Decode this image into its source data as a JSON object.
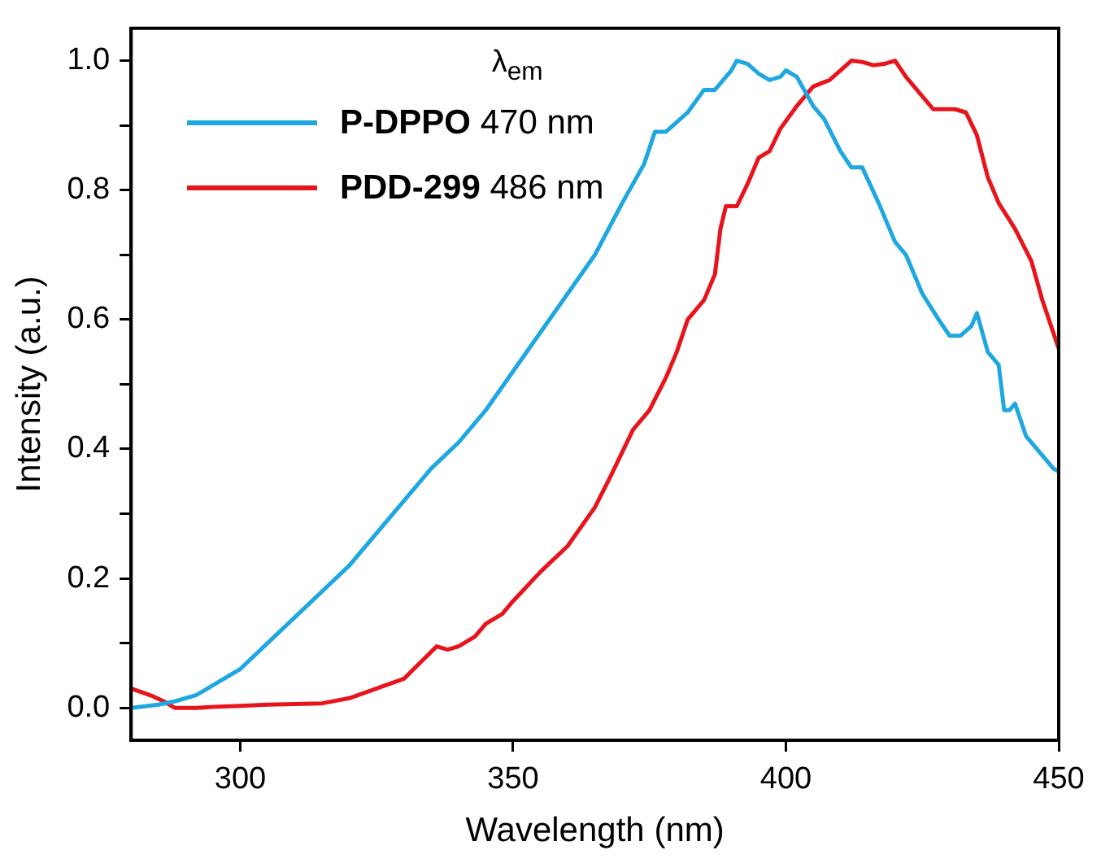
{
  "chart_data": {
    "type": "line",
    "xlabel": "Wavelength (nm)",
    "ylabel": "Intensity (a.u.)",
    "legend_title": "λ$_{em}$",
    "legend": "top left",
    "grid": false,
    "marker": "none",
    "line_style": "solid",
    "xlim": [
      280,
      450
    ],
    "xticks": [
      300,
      350,
      400,
      450
    ],
    "ylim": [
      -0.05,
      1.05
    ],
    "yticks": [
      {
        "value": 0,
        "label": "0.0"
      },
      {
        "value": 0.1,
        "label": null
      },
      {
        "value": 0.2,
        "label": "0.2"
      },
      {
        "value": 0.3,
        "label": null
      },
      {
        "value": 0.4,
        "label": "0.4"
      },
      {
        "value": 0.5,
        "label": null
      },
      {
        "value": 0.6,
        "label": "0.6"
      },
      {
        "value": 0.7,
        "label": null
      },
      {
        "value": 0.8,
        "label": "0.8"
      },
      {
        "value": 0.9,
        "label": null
      },
      {
        "value": 1,
        "label": "1.0"
      }
    ],
    "series": [
      {
        "name": "P-DPPO 470 nm",
        "color": "#1ea7e1",
        "x": [
          280,
          285,
          288,
          292,
          295,
          300,
          305,
          310,
          315,
          320,
          325,
          330,
          335,
          340,
          345,
          350,
          355,
          360,
          365,
          370,
          374,
          376,
          378,
          382,
          385,
          387,
          390,
          391,
          393,
          395,
          397,
          399,
          400,
          402,
          405,
          407,
          410,
          412,
          414,
          417,
          420,
          422,
          425,
          428,
          430,
          432,
          434,
          435,
          437,
          439,
          440,
          441,
          442,
          444,
          447,
          449,
          450
        ],
        "values": [
          0.0,
          0.005,
          0.01,
          0.02,
          0.035,
          0.06,
          0.1,
          0.14,
          0.18,
          0.22,
          0.27,
          0.32,
          0.37,
          0.41,
          0.46,
          0.52,
          0.58,
          0.64,
          0.7,
          0.78,
          0.84,
          0.89,
          0.89,
          0.92,
          0.955,
          0.955,
          0.985,
          1.0,
          0.995,
          0.98,
          0.97,
          0.975,
          0.985,
          0.975,
          0.93,
          0.91,
          0.86,
          0.835,
          0.835,
          0.78,
          0.72,
          0.7,
          0.64,
          0.6,
          0.575,
          0.575,
          0.59,
          0.61,
          0.55,
          0.53,
          0.46,
          0.46,
          0.47,
          0.42,
          0.39,
          0.37,
          0.365
        ]
      },
      {
        "name": "PDD-299 486 nm",
        "color": "#e8141c",
        "x": [
          280,
          284,
          286,
          288,
          292,
          296,
          300,
          305,
          310,
          315,
          320,
          325,
          330,
          333,
          336,
          338,
          340,
          343,
          345,
          348,
          350,
          355,
          360,
          365,
          368,
          372,
          375,
          378,
          380,
          382,
          385,
          387,
          388,
          389,
          391,
          393,
          395,
          397,
          399,
          402,
          405,
          408,
          410,
          412,
          414,
          416,
          418,
          420,
          422,
          425,
          427,
          429,
          431,
          433,
          435,
          437,
          439,
          442,
          445,
          447,
          450
        ],
        "values": [
          0.03,
          0.018,
          0.01,
          0.0,
          0.0,
          0.002,
          0.003,
          0.005,
          0.006,
          0.007,
          0.015,
          0.03,
          0.045,
          0.07,
          0.095,
          0.09,
          0.095,
          0.11,
          0.13,
          0.145,
          0.165,
          0.21,
          0.25,
          0.31,
          0.36,
          0.43,
          0.46,
          0.51,
          0.55,
          0.6,
          0.63,
          0.67,
          0.74,
          0.775,
          0.775,
          0.81,
          0.85,
          0.86,
          0.895,
          0.93,
          0.96,
          0.97,
          0.985,
          1.0,
          0.998,
          0.993,
          0.995,
          1.0,
          0.975,
          0.945,
          0.925,
          0.925,
          0.925,
          0.92,
          0.885,
          0.82,
          0.78,
          0.74,
          0.69,
          0.63,
          0.555
        ]
      }
    ]
  }
}
